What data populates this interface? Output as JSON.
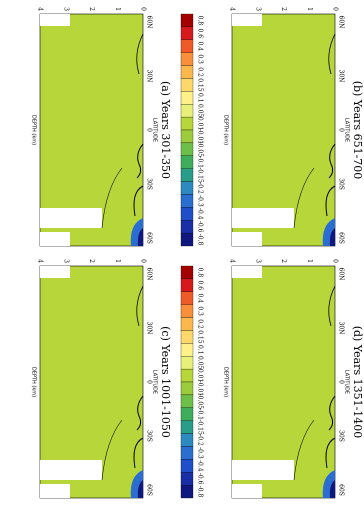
{
  "panels": [
    {
      "title": "(a) Years 301-350",
      "depth_label": "DEPTH (km)",
      "lat_label": "LATITUDE",
      "depth_ticks": [
        "4",
        "3",
        "2",
        "1",
        "0"
      ],
      "lat_ticks": [
        "60N",
        "30N",
        "0",
        "30S",
        "60S"
      ]
    },
    {
      "title": "(b) Years 651-700",
      "depth_label": "DEPTH (km)",
      "lat_label": "LATITUDE",
      "depth_ticks": [
        "4",
        "3",
        "2",
        "1",
        "0"
      ],
      "lat_ticks": [
        "60N",
        "30N",
        "0",
        "30S",
        "60S"
      ]
    },
    {
      "title": "(c) Years 1001-1050",
      "depth_label": "DEPTH (km)",
      "lat_label": "LATITUDE",
      "depth_ticks": [
        "4",
        "3",
        "2",
        "1",
        "0"
      ],
      "lat_ticks": [
        "60N",
        "30N",
        "0",
        "30S",
        "60S"
      ]
    },
    {
      "title": "(d) Years 1351-1400",
      "depth_label": "DEPTH (km)",
      "lat_label": "LATITUDE",
      "depth_ticks": [
        "4",
        "3",
        "2",
        "1",
        "0"
      ],
      "lat_ticks": [
        "60N",
        "30N",
        "0",
        "30S",
        "60S"
      ]
    }
  ],
  "colorbar": {
    "levels": [
      0.8,
      0.6,
      0.4,
      0.3,
      0.2,
      0.15,
      0.1,
      0.05,
      0.01,
      -0.01,
      -0.05,
      -0.1,
      -0.15,
      -0.2,
      -0.3,
      -0.4,
      -0.6,
      -0.8
    ],
    "colors": [
      "#a50000",
      "#d7191c",
      "#f05a28",
      "#f98e3b",
      "#fdb84d",
      "#fed86a",
      "#fff08a",
      "#e8f07a",
      "#b6d63a",
      "#9ccc3c",
      "#6cc04a",
      "#3fae5c",
      "#2a9c8a",
      "#2c8ac0",
      "#2a6ed0",
      "#1f4fc8",
      "#1a2ea8",
      "#101880"
    ]
  }
}
